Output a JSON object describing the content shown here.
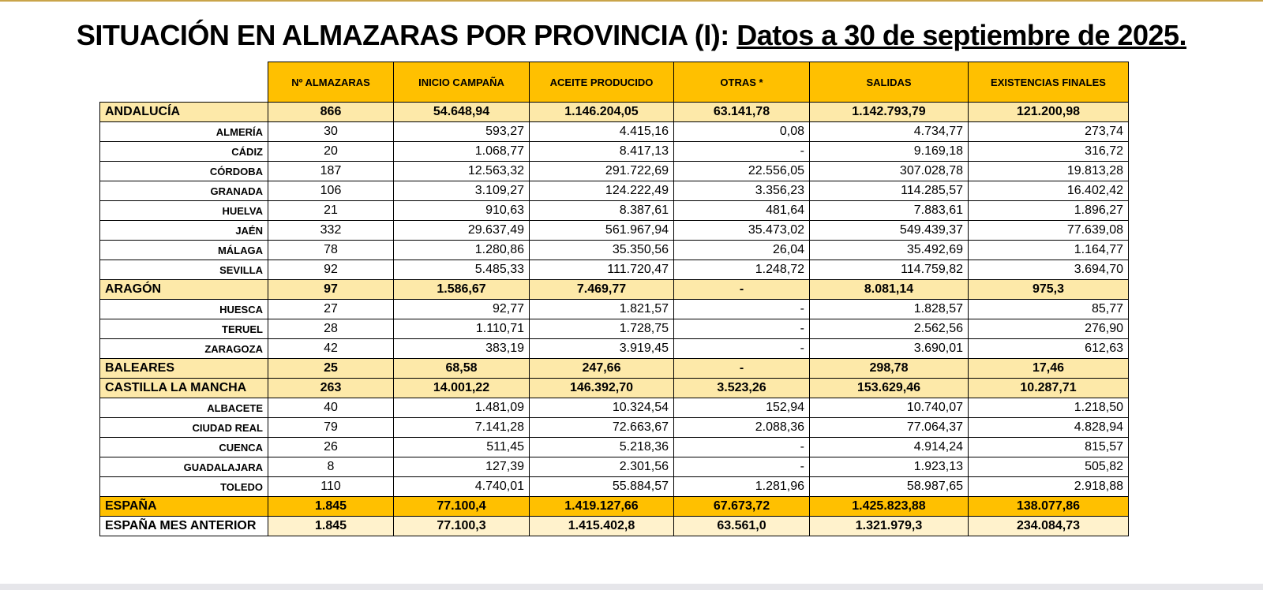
{
  "header": {
    "title": "SITUACIÓN EN ALMAZARAS POR PROVINCIA (I):",
    "subtitle": "Datos a 30 de septiembre de 2025."
  },
  "table": {
    "columns": [
      "Nº ALMAZARAS",
      "INICIO CAMPAÑA",
      "ACEITE PRODUCIDO",
      "OTRAS *",
      "SALIDAS",
      "EXISTENCIAS FINALES"
    ],
    "sections": [
      {
        "label": "ANDALUCÍA",
        "values": [
          "866",
          "54.648,94",
          "1.146.204,05",
          "63.141,78",
          "1.142.793,79",
          "121.200,98"
        ],
        "rows": [
          {
            "label": "ALMERÍA",
            "values": [
              "30",
              "593,27",
              "4.415,16",
              "0,08",
              "4.734,77",
              "273,74"
            ]
          },
          {
            "label": "CÁDIZ",
            "values": [
              "20",
              "1.068,77",
              "8.417,13",
              "-",
              "9.169,18",
              "316,72"
            ]
          },
          {
            "label": "CÓRDOBA",
            "values": [
              "187",
              "12.563,32",
              "291.722,69",
              "22.556,05",
              "307.028,78",
              "19.813,28"
            ]
          },
          {
            "label": "GRANADA",
            "values": [
              "106",
              "3.109,27",
              "124.222,49",
              "3.356,23",
              "114.285,57",
              "16.402,42"
            ]
          },
          {
            "label": "HUELVA",
            "values": [
              "21",
              "910,63",
              "8.387,61",
              "481,64",
              "7.883,61",
              "1.896,27"
            ]
          },
          {
            "label": "JAÉN",
            "values": [
              "332",
              "29.637,49",
              "561.967,94",
              "35.473,02",
              "549.439,37",
              "77.639,08"
            ]
          },
          {
            "label": "MÁLAGA",
            "values": [
              "78",
              "1.280,86",
              "35.350,56",
              "26,04",
              "35.492,69",
              "1.164,77"
            ]
          },
          {
            "label": "SEVILLA",
            "values": [
              "92",
              "5.485,33",
              "111.720,47",
              "1.248,72",
              "114.759,82",
              "3.694,70"
            ]
          }
        ]
      },
      {
        "label": "ARAGÓN",
        "values": [
          "97",
          "1.586,67",
          "7.469,77",
          "-",
          "8.081,14",
          "975,3"
        ],
        "rows": [
          {
            "label": "HUESCA",
            "values": [
              "27",
              "92,77",
              "1.821,57",
              "-",
              "1.828,57",
              "85,77"
            ]
          },
          {
            "label": "TERUEL",
            "values": [
              "28",
              "1.110,71",
              "1.728,75",
              "-",
              "2.562,56",
              "276,90"
            ]
          },
          {
            "label": "ZARAGOZA",
            "values": [
              "42",
              "383,19",
              "3.919,45",
              "-",
              "3.690,01",
              "612,63"
            ]
          }
        ]
      },
      {
        "label": "BALEARES",
        "values": [
          "25",
          "68,58",
          "247,66",
          "-",
          "298,78",
          "17,46"
        ],
        "rows": []
      },
      {
        "label": "CASTILLA LA MANCHA",
        "values": [
          "263",
          "14.001,22",
          "146.392,70",
          "3.523,26",
          "153.629,46",
          "10.287,71"
        ],
        "rows": [
          {
            "label": "ALBACETE",
            "values": [
              "40",
              "1.481,09",
              "10.324,54",
              "152,94",
              "10.740,07",
              "1.218,50"
            ]
          },
          {
            "label": "CIUDAD REAL",
            "values": [
              "79",
              "7.141,28",
              "72.663,67",
              "2.088,36",
              "77.064,37",
              "4.828,94"
            ]
          },
          {
            "label": "CUENCA",
            "values": [
              "26",
              "511,45",
              "5.218,36",
              "-",
              "4.914,24",
              "815,57"
            ]
          },
          {
            "label": "GUADALAJARA",
            "values": [
              "8",
              "127,39",
              "2.301,56",
              "-",
              "1.923,13",
              "505,82"
            ]
          },
          {
            "label": "TOLEDO",
            "values": [
              "110",
              "4.740,01",
              "55.884,57",
              "1.281,96",
              "58.987,65",
              "2.918,88"
            ]
          }
        ]
      }
    ],
    "totals": [
      {
        "label": "ESPAÑA",
        "values": [
          "1.845",
          "77.100,4",
          "1.419.127,66",
          "67.673,72",
          "1.425.823,88",
          "138.077,86"
        ]
      },
      {
        "label": "ESPAÑA MES ANTERIOR",
        "values": [
          "1.845",
          "77.100,3",
          "1.415.402,8",
          "63.561,0",
          "1.321.979,3",
          "234.084,73"
        ]
      }
    ]
  }
}
